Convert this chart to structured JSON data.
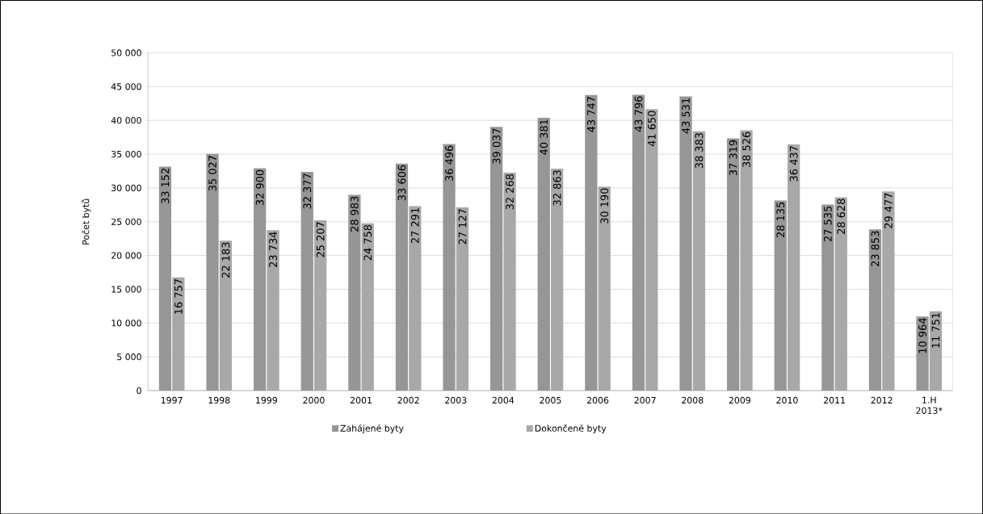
{
  "chart_data": {
    "type": "bar",
    "ylabel": "Počet bytů",
    "categories": [
      "1997",
      "1998",
      "1999",
      "2000",
      "2001",
      "2002",
      "2003",
      "2004",
      "2005",
      "2006",
      "2007",
      "2008",
      "2009",
      "2010",
      "2011",
      "2012",
      "1.H 2013*"
    ],
    "series": [
      {
        "name": "Zahájené byty",
        "color": "#969696",
        "values": [
          33152,
          35027,
          32900,
          32377,
          28983,
          33606,
          36496,
          39037,
          40381,
          43747,
          43796,
          43531,
          37319,
          28135,
          27535,
          23853,
          10964
        ],
        "value_labels": [
          "33 152",
          "35 027",
          "32 900",
          "32 377",
          "28 983",
          "33 606",
          "36 496",
          "39 037",
          "40 381",
          "43 747",
          "43 796",
          "43 531",
          "37 319",
          "28 135",
          "27 535",
          "23 853",
          "10 964"
        ]
      },
      {
        "name": "Dokončené byty",
        "color": "#a8a8a8",
        "values": [
          16757,
          22183,
          23734,
          25207,
          24758,
          27291,
          27127,
          32268,
          32863,
          30190,
          41650,
          38383,
          38526,
          36437,
          28628,
          29477,
          11751
        ],
        "value_labels": [
          "16 757",
          "22 183",
          "23 734",
          "25 207",
          "24 758",
          "27 291",
          "27 127",
          "32 268",
          "32 863",
          "30 190",
          "41 650",
          "38 383",
          "38 526",
          "36 437",
          "28 628",
          "29 477",
          "11 751"
        ]
      }
    ],
    "ylim": [
      0,
      50000
    ],
    "yticks": [
      {
        "value": 0,
        "label": "0"
      },
      {
        "value": 5000,
        "label": "5 000"
      },
      {
        "value": 10000,
        "label": "10 000"
      },
      {
        "value": 15000,
        "label": "15 000"
      },
      {
        "value": 20000,
        "label": "20 000"
      },
      {
        "value": 25000,
        "label": "25 000"
      },
      {
        "value": 30000,
        "label": "30 000"
      },
      {
        "value": 35000,
        "label": "35 000"
      },
      {
        "value": 40000,
        "label": "40 000"
      },
      {
        "value": 45000,
        "label": "45 000"
      },
      {
        "value": 50000,
        "label": "50 000"
      }
    ],
    "grid": "y",
    "legend": "bottom"
  }
}
